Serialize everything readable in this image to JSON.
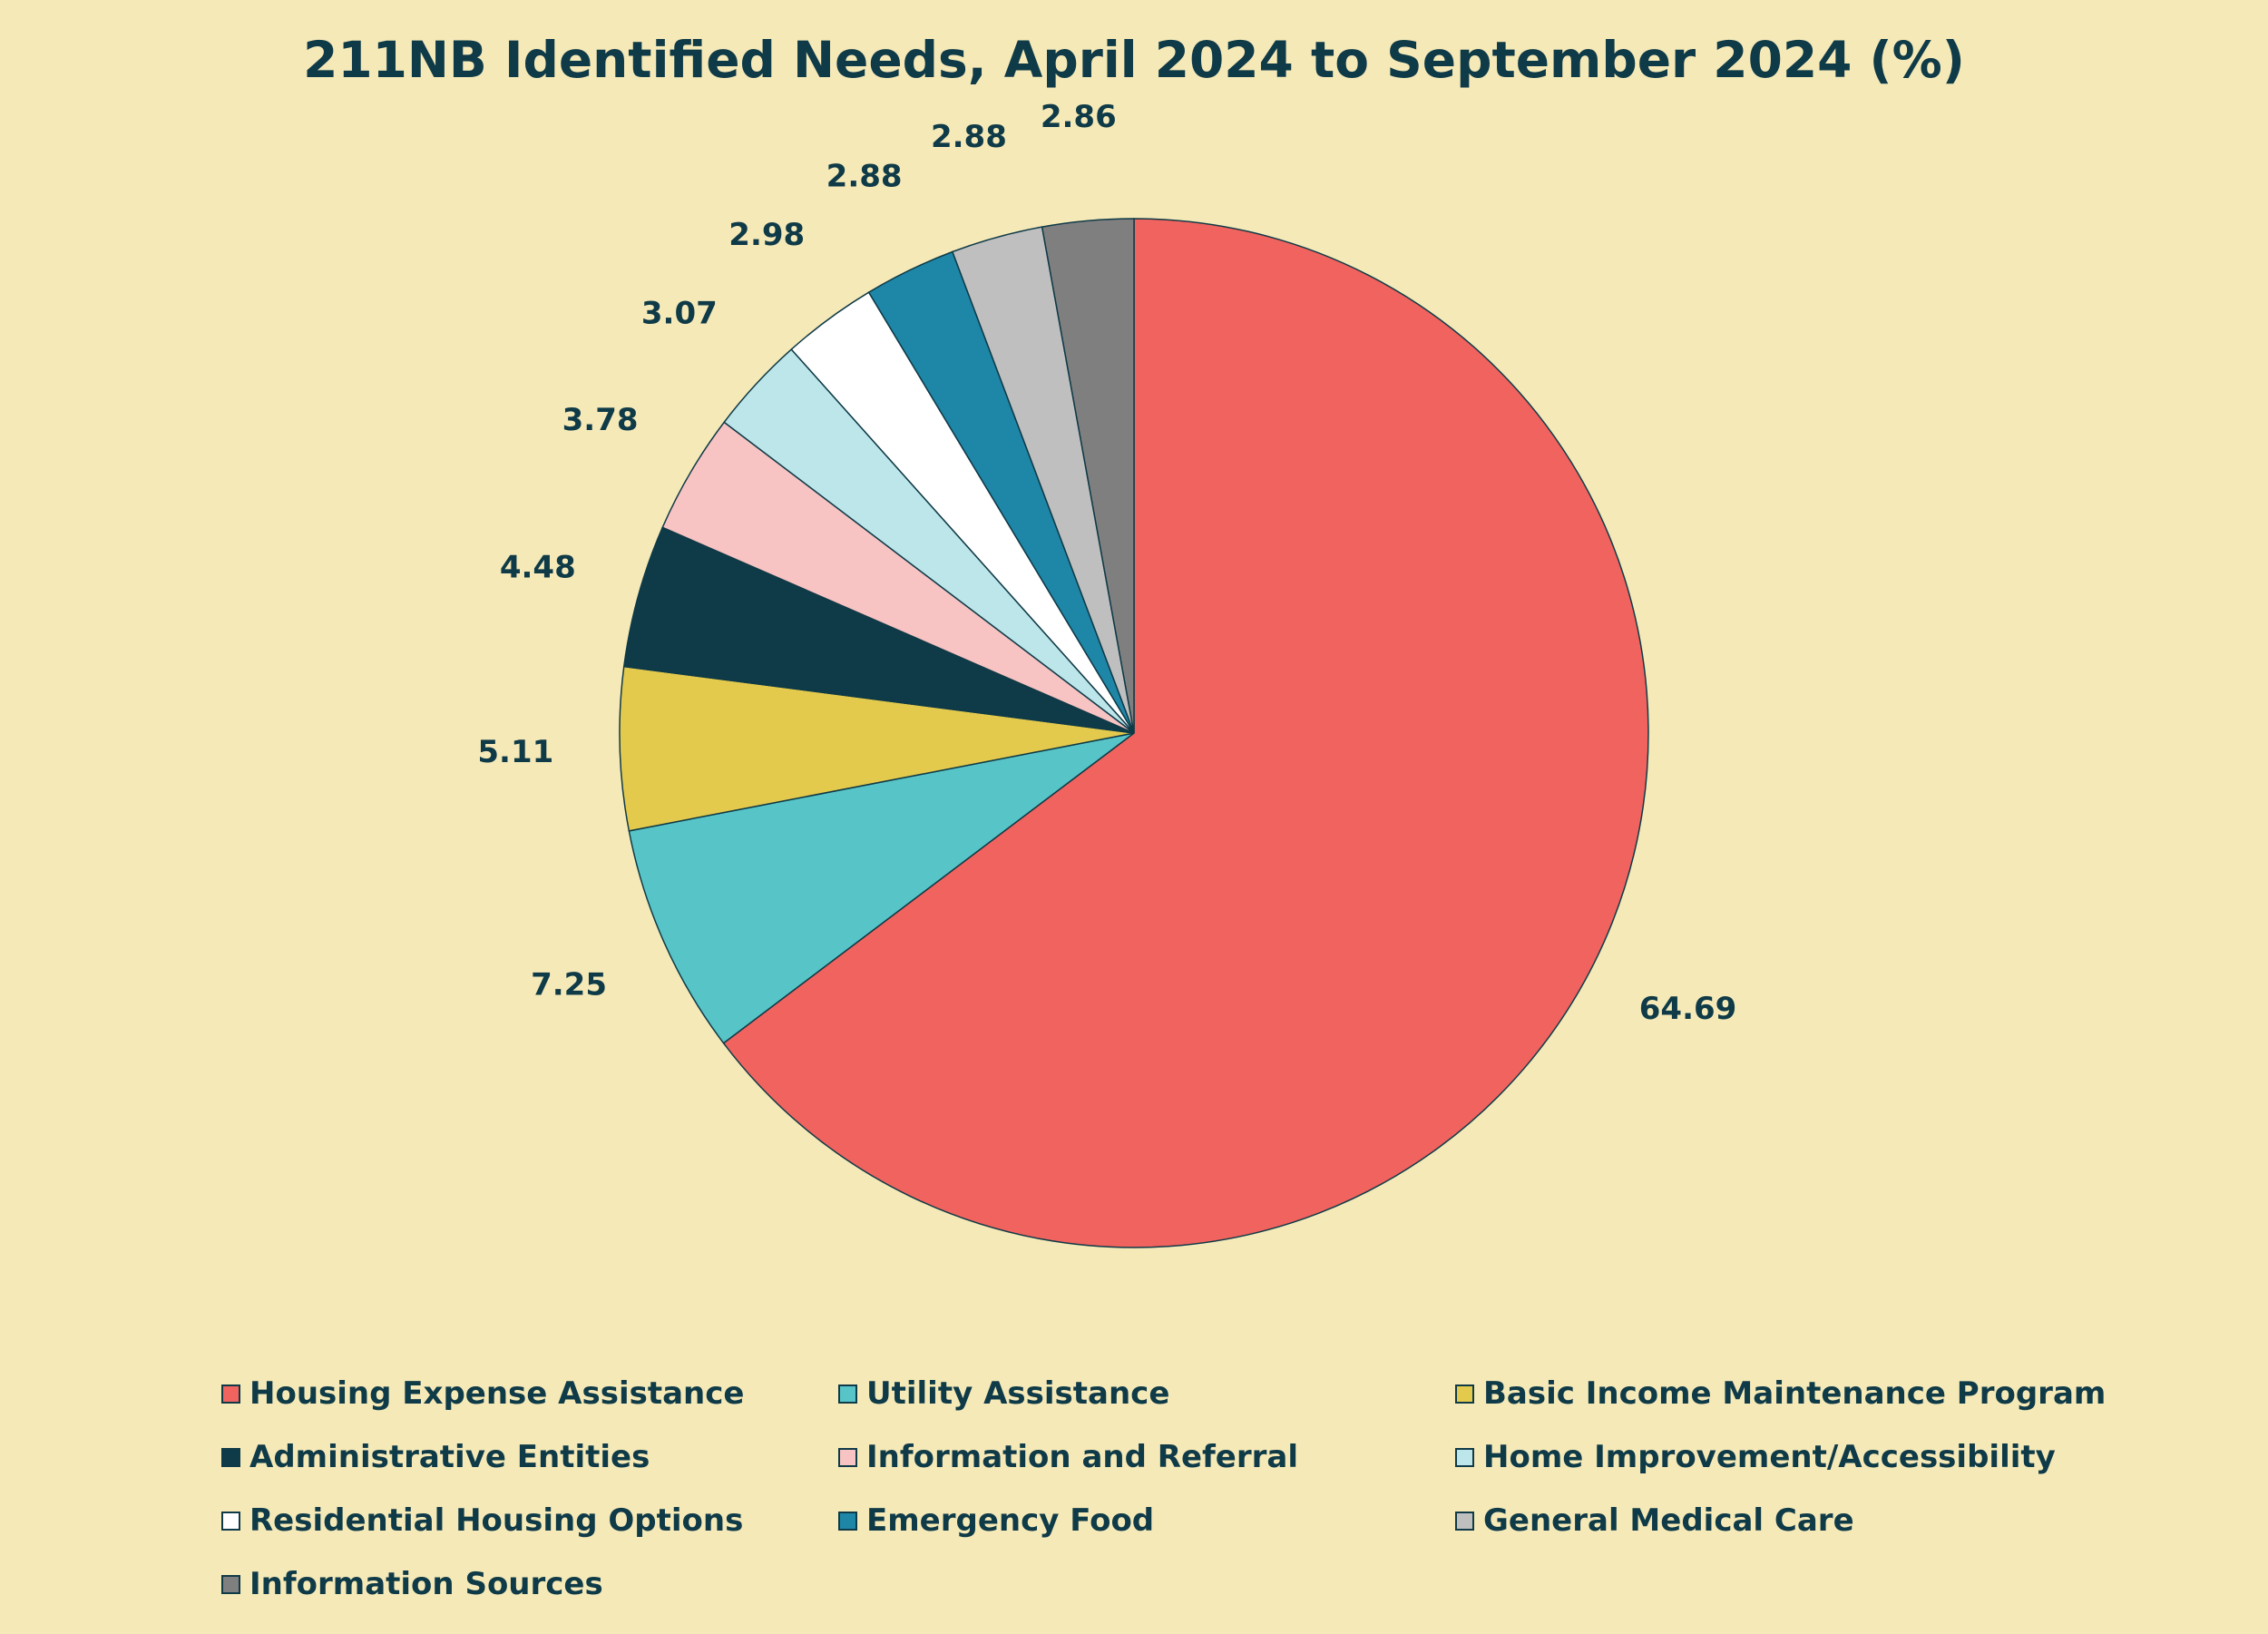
{
  "chart_data": {
    "type": "pie",
    "title": "211NB Identified Needs, April 2024 to September 2024 (%)",
    "legend_position": "bottom",
    "start_angle": "12 o'clock",
    "direction": "clockwise",
    "slices": [
      {
        "label": "Housing Expense Assistance",
        "value": 64.69,
        "display": "64.69",
        "color": "#f0635e"
      },
      {
        "label": "Utility Assistance",
        "value": 7.25,
        "display": "7.25",
        "color": "#57c4c7"
      },
      {
        "label": "Basic Income Maintenance Program",
        "value": 5.11,
        "display": "5.11",
        "color": "#e3c94c"
      },
      {
        "label": "Administrative Entities",
        "value": 4.48,
        "display": "4.48",
        "color": "#0f3a47"
      },
      {
        "label": "Information and Referral",
        "value": 3.78,
        "display": "3.78",
        "color": "#f8c3c3"
      },
      {
        "label": "Home Improvement/Accessibility",
        "value": 3.07,
        "display": "3.07",
        "color": "#bde6ea"
      },
      {
        "label": "Residential Housing Options",
        "value": 2.98,
        "display": "2.98",
        "color": "#ffffff"
      },
      {
        "label": "Emergency Food",
        "value": 2.88,
        "display": "2.88",
        "color": "#1e86a7"
      },
      {
        "label": "General Medical Care",
        "value": 2.88,
        "display": "2.88",
        "color": "#bfbfbf"
      },
      {
        "label": "Information Sources",
        "value": 2.86,
        "display": "2.86",
        "color": "#7f7f7f"
      }
    ]
  }
}
